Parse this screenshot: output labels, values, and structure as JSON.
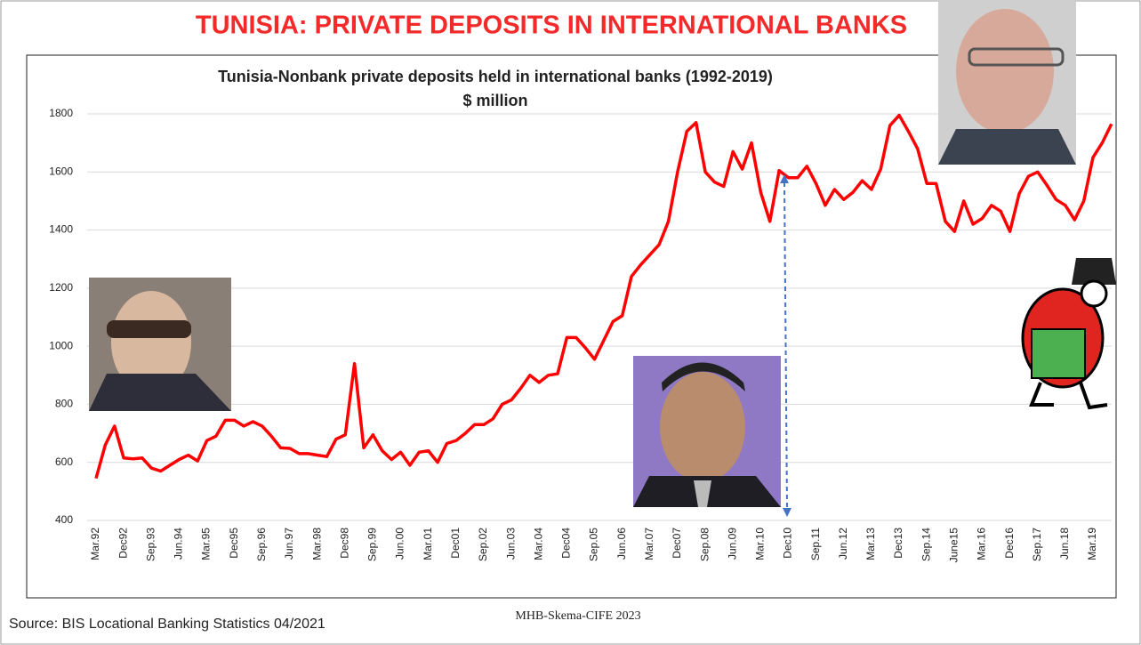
{
  "title": "TUNISIA: PRIVATE DEPOSITS IN INTERNATIONAL BANKS",
  "source": "Source: BIS Locational Banking Statistics 04/2021",
  "credit": "MHB-Skema-CIFE 2023",
  "chart_data": {
    "type": "line",
    "title": "Tunisia-Nonbank private deposits held in international banks (1992-2019)",
    "subtitle": "$ million",
    "color": "#ff0000",
    "grid": true,
    "ylim": [
      400,
      1800
    ],
    "yticks": [
      400,
      600,
      800,
      1000,
      1200,
      1400,
      1600,
      1800
    ],
    "categories": [
      "Mar.92",
      null,
      null,
      "Dec92",
      null,
      null,
      "Sep.93",
      null,
      null,
      "Jun.94",
      null,
      null,
      "Mar.95",
      null,
      null,
      "Dec95",
      null,
      null,
      "Sep.96",
      null,
      null,
      "Jun.97",
      null,
      null,
      "Mar.98",
      null,
      null,
      "Dec98",
      null,
      null,
      "Sep.99",
      null,
      null,
      "Jun.00",
      null,
      null,
      "Mar.01",
      null,
      null,
      "Dec01",
      null,
      null,
      "Sep.02",
      null,
      null,
      "Jun.03",
      null,
      null,
      "Mar.04",
      null,
      null,
      "Dec04",
      null,
      null,
      "Sep.05",
      null,
      null,
      "Jun.06",
      null,
      null,
      "Mar.07",
      null,
      null,
      "Dec07",
      null,
      null,
      "Sep.08",
      null,
      null,
      "Jun.09",
      null,
      null,
      "Mar.10",
      null,
      null,
      "Dec10",
      null,
      null,
      "Sep.11",
      null,
      null,
      "Jun.12",
      null,
      null,
      "Mar.13",
      null,
      null,
      "Dec13",
      null,
      null,
      "Sep.14",
      null,
      null,
      "June15",
      null,
      null,
      "Mar.16",
      null,
      null,
      "Dec16",
      null,
      null,
      "Sep.17",
      null,
      null,
      "Jun.18",
      null,
      null,
      "Mar.19",
      null,
      null
    ],
    "values": [
      545,
      660,
      725,
      615,
      612,
      615,
      580,
      570,
      590,
      610,
      625,
      605,
      675,
      690,
      745,
      745,
      725,
      740,
      725,
      690,
      650,
      648,
      630,
      630,
      625,
      620,
      680,
      695,
      940,
      650,
      695,
      640,
      610,
      635,
      590,
      635,
      640,
      600,
      665,
      675,
      700,
      730,
      730,
      750,
      800,
      815,
      855,
      900,
      875,
      900,
      905,
      1030,
      1030,
      995,
      955,
      1020,
      1085,
      1105,
      1240,
      1280,
      1315,
      1350,
      1430,
      1600,
      1740,
      1770,
      1600,
      1565,
      1550,
      1670,
      1610,
      1700,
      1530,
      1430,
      1605,
      1580,
      1580,
      1620,
      1560,
      1485,
      1540,
      1505,
      1530,
      1570,
      1540,
      1610,
      1760,
      1795,
      1740,
      1680,
      1560,
      1560,
      1430,
      1395,
      1500,
      1420,
      1440,
      1485,
      1465,
      1395,
      1525,
      1585,
      1600,
      1555,
      1505,
      1485,
      1435,
      1500,
      1650,
      1700,
      1765
    ]
  }
}
